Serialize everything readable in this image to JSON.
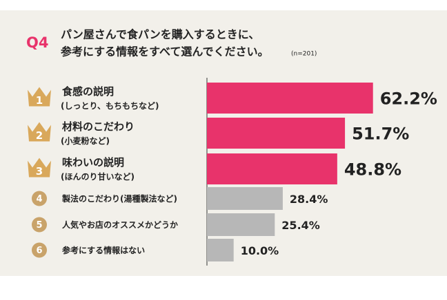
{
  "chart_data": {
    "type": "bar",
    "orientation": "horizontal",
    "question": "Q4",
    "title": [
      "パン屋さんで食パンを購入するときに、",
      "参考にする情報をすべて選んでください。"
    ],
    "note": "(n=201)",
    "ranks": [
      1,
      2,
      3,
      4,
      5,
      6
    ],
    "categories": [
      "食感の説明",
      "材料のこだわり",
      "味わいの説明",
      "製法のこだわり(湯種製法など)",
      "人気やお店のオススメかどうか",
      "参考にする情報はない"
    ],
    "subcategories": [
      "(しっとり、もちもちなど)",
      "(小麦粉など)",
      "(ほんのり甘いなど)",
      null,
      null,
      null
    ],
    "values": [
      62.2,
      51.7,
      48.8,
      28.4,
      25.4,
      10.0
    ],
    "value_labels": [
      "62.2%",
      "51.7%",
      "48.8%",
      "28.4%",
      "25.4%",
      "10.0%"
    ],
    "colors": [
      "#e8336b",
      "#e8336b",
      "#e8336b",
      "#b7b7b7",
      "#b7b7b7",
      "#b7b7b7"
    ],
    "rank_colors": [
      "#d9a85b",
      "#d9a85b",
      "#d9a85b",
      "#c9a36a",
      "#c9a36a",
      "#c9a36a"
    ]
  }
}
